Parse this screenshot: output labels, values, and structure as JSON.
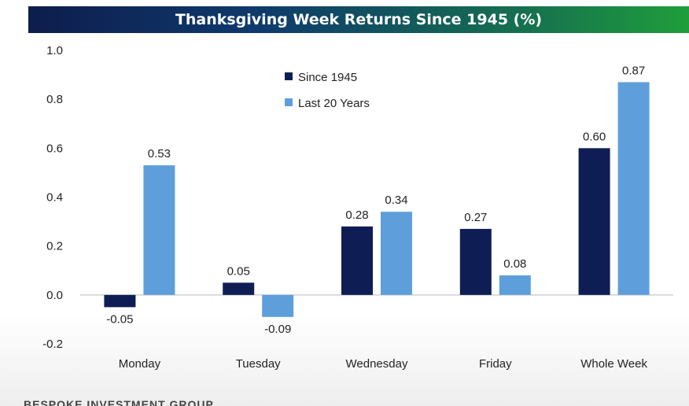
{
  "chart_data": {
    "type": "bar",
    "title": "Thanksgiving Week Returns Since 1945 (%)",
    "categories": [
      "Monday",
      "Tuesday",
      "Wednesday",
      "Friday",
      "Whole Week"
    ],
    "series": [
      {
        "name": "Since 1945",
        "color": "#0e1e55",
        "values": [
          -0.05,
          0.05,
          0.28,
          0.27,
          0.6
        ],
        "labels": [
          "-0.05",
          "0.05",
          "0.28",
          "0.27",
          "0.60"
        ]
      },
      {
        "name": "Last 20 Years",
        "color": "#5e9fdb",
        "values": [
          0.53,
          -0.09,
          0.34,
          0.08,
          0.87
        ],
        "labels": [
          "0.53",
          "-0.09",
          "0.34",
          "0.08",
          "0.87"
        ]
      }
    ],
    "ylim": [
      -0.2,
      1.0
    ],
    "yticks": [
      "-0.2",
      "0.0",
      "0.2",
      "0.4",
      "0.6",
      "0.8",
      "1.0"
    ],
    "ytick_values": [
      -0.2,
      0.0,
      0.2,
      0.4,
      0.6,
      0.8,
      1.0
    ],
    "grid": false,
    "legend_position": "top-center",
    "title_bar_colors": [
      "#0d1d4d",
      "#1f9e3b"
    ]
  },
  "footer": {
    "source": "BESPOKE INVESTMENT GROUP"
  }
}
